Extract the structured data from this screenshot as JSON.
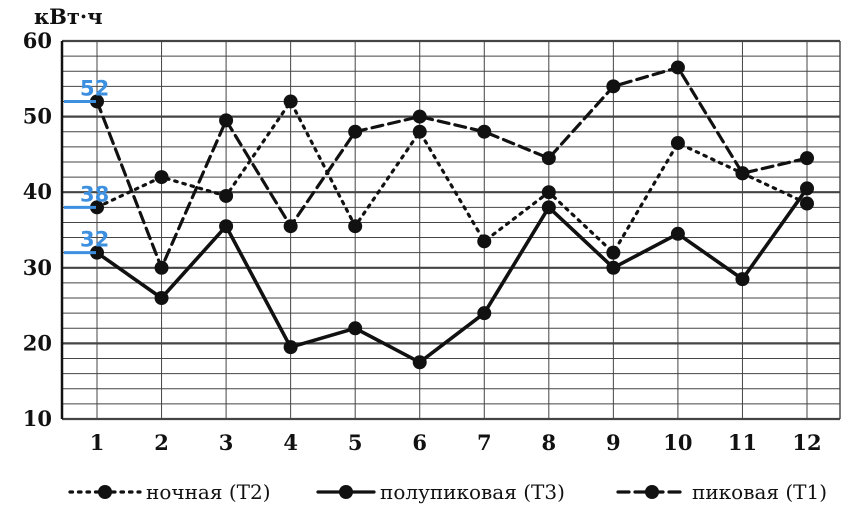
{
  "chart_data": {
    "type": "line",
    "unit_label": "кВт·ч",
    "x": [
      1,
      2,
      3,
      4,
      5,
      6,
      7,
      8,
      9,
      10,
      11,
      12
    ],
    "x_tick_labels": [
      "1",
      "2",
      "3",
      "4",
      "5",
      "6",
      "7",
      "8",
      "9",
      "10",
      "11",
      "12"
    ],
    "ylim": [
      10,
      60
    ],
    "y_tick_values": [
      10,
      20,
      30,
      40,
      50,
      60
    ],
    "y_tick_labels": [
      "10",
      "20",
      "30",
      "40",
      "50",
      "60"
    ],
    "minor_grid_step": 2,
    "grid": true,
    "series": [
      {
        "name": "ночная (Т2)",
        "style": "dotted",
        "values": [
          38,
          42,
          39.5,
          52,
          35.5,
          48,
          33.5,
          40,
          32,
          46.5,
          42.5,
          38.5
        ]
      },
      {
        "name": "полупиковая (Т3)",
        "style": "solid",
        "values": [
          32,
          26,
          35.5,
          19.5,
          22,
          17.5,
          24,
          38,
          30,
          34.5,
          28.5,
          40.5
        ]
      },
      {
        "name": "пиковая (Т1)",
        "style": "dashed",
        "values": [
          52,
          30,
          49.5,
          35.5,
          48,
          50,
          48,
          44.5,
          54,
          56.5,
          42.5,
          44.5
        ]
      }
    ],
    "annotations": [
      {
        "label": "52",
        "value": 52
      },
      {
        "label": "38",
        "value": 38
      },
      {
        "label": "32",
        "value": 32
      }
    ],
    "legend_position": "bottom"
  },
  "colors": {
    "grid": "#444444",
    "line": "#111111",
    "annotation": "#3d8fe0"
  }
}
